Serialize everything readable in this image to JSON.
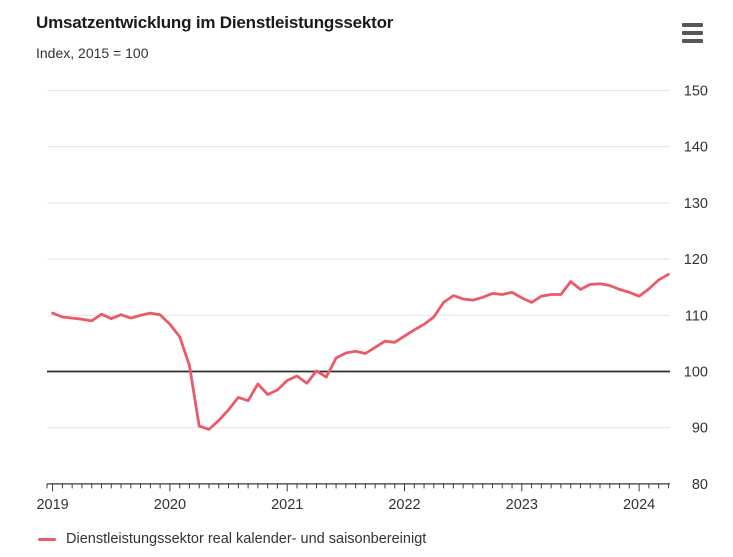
{
  "header": {
    "title": "Umsatzentwicklung im Dienstleistungssektor",
    "subtitle": "Index, 2015 = 100"
  },
  "menu": {
    "icon": "hamburger-menu-icon"
  },
  "legend": {
    "label": "Dienstleistungssektor real kalender- und saisonbereinigt"
  },
  "colors": {
    "series": "#ec5a6a",
    "baseline": "#2e2e2e",
    "gridline": "#e7e7e7",
    "axis": "#3a3a3a",
    "tick_text": "#333333",
    "title_text": "#1a1a1a",
    "menu_icon": "#57575a"
  },
  "chart_data": {
    "type": "line",
    "title": "Umsatzentwicklung im Dienstleistungssektor",
    "subtitle": "Index, 2015 = 100",
    "xlabel": "",
    "ylabel": "",
    "ylim": [
      80,
      150
    ],
    "y_ticks": [
      150,
      140,
      130,
      120,
      110,
      100,
      90,
      80
    ],
    "y_axis_side": "right",
    "baseline_value": 100,
    "grid": "horizontal",
    "legend_position": "bottom-left",
    "x_ticks_years": [
      2019,
      2020,
      2021,
      2022,
      2023,
      2024
    ],
    "x": [
      "2019-01",
      "2019-02",
      "2019-03",
      "2019-04",
      "2019-05",
      "2019-06",
      "2019-07",
      "2019-08",
      "2019-09",
      "2019-10",
      "2019-11",
      "2019-12",
      "2020-01",
      "2020-02",
      "2020-03",
      "2020-04",
      "2020-05",
      "2020-06",
      "2020-07",
      "2020-08",
      "2020-09",
      "2020-10",
      "2020-11",
      "2020-12",
      "2021-01",
      "2021-02",
      "2021-03",
      "2021-04",
      "2021-05",
      "2021-06",
      "2021-07",
      "2021-08",
      "2021-09",
      "2021-10",
      "2021-11",
      "2021-12",
      "2022-01",
      "2022-02",
      "2022-03",
      "2022-04",
      "2022-05",
      "2022-06",
      "2022-07",
      "2022-08",
      "2022-09",
      "2022-10",
      "2022-11",
      "2022-12",
      "2023-01",
      "2023-02",
      "2023-03",
      "2023-04",
      "2023-05",
      "2023-06",
      "2023-07",
      "2023-08",
      "2023-09",
      "2023-10",
      "2023-11",
      "2023-12",
      "2024-01",
      "2024-02",
      "2024-03",
      "2024-04"
    ],
    "series": [
      {
        "name": "Dienstleistungssektor real kalender- und saisonbereinigt",
        "color": "#ec5a6a",
        "values": [
          110.4,
          109.7,
          109.5,
          109.3,
          109.0,
          110.2,
          109.4,
          110.1,
          109.5,
          110.0,
          110.4,
          110.1,
          108.4,
          106.2,
          101.1,
          90.3,
          89.7,
          91.3,
          93.2,
          95.4,
          94.8,
          97.8,
          95.9,
          96.7,
          98.4,
          99.2,
          97.9,
          100.1,
          99.0,
          102.4,
          103.3,
          103.6,
          103.2,
          104.3,
          105.4,
          105.2,
          106.3,
          107.4,
          108.4,
          109.7,
          112.3,
          113.5,
          112.9,
          112.7,
          113.2,
          113.9,
          113.7,
          114.1,
          113.1,
          112.3,
          113.4,
          113.7,
          113.7,
          116.0,
          114.6,
          115.5,
          115.6,
          115.3,
          114.6,
          114.1,
          113.4,
          114.7,
          116.3,
          117.3
        ]
      }
    ]
  }
}
